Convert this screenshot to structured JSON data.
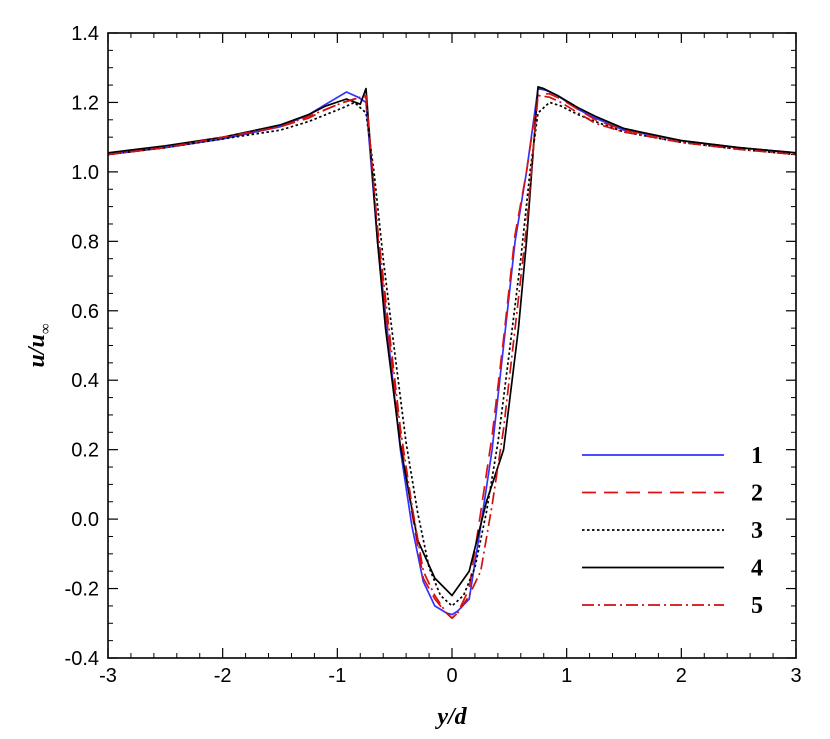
{
  "chart_data": {
    "type": "line",
    "xlabel": "y/d",
    "ylabel_main": "u/u",
    "ylabel_sub": "∞",
    "xlim": [
      -3,
      3
    ],
    "ylim": [
      -0.4,
      1.4
    ],
    "xticks": [
      "-3",
      "-2",
      "-1",
      "0",
      "1",
      "2",
      "3"
    ],
    "yticks": [
      "-0.4",
      "-0.2",
      "0.0",
      "0.2",
      "0.4",
      "0.6",
      "0.8",
      "1.0",
      "1.2",
      "1.4"
    ],
    "grid": false,
    "legend_position": "lower-right",
    "series": [
      {
        "name": "1",
        "color": "#3333ff",
        "dash": "solid",
        "x": [
          -3,
          -2.5,
          -2,
          -1.5,
          -1.25,
          -1.1,
          -0.92,
          -0.82,
          -0.75,
          -0.65,
          -0.55,
          -0.45,
          -0.35,
          -0.25,
          -0.15,
          -0.05,
          0,
          0.05,
          0.15,
          0.25,
          0.35,
          0.45,
          0.55,
          0.65,
          0.75,
          0.82,
          0.92,
          1.1,
          1.25,
          1.5,
          2,
          2.5,
          3
        ],
        "y": [
          1.05,
          1.07,
          1.095,
          1.13,
          1.165,
          1.195,
          1.23,
          1.215,
          1.2,
          0.8,
          0.5,
          0.2,
          -0.02,
          -0.18,
          -0.25,
          -0.27,
          -0.275,
          -0.265,
          -0.23,
          -0.02,
          0.2,
          0.5,
          0.8,
          1.0,
          1.24,
          1.235,
          1.22,
          1.18,
          1.155,
          1.12,
          1.09,
          1.07,
          1.055
        ]
      },
      {
        "name": "2",
        "color": "#dd1111",
        "dash": "dashed",
        "x": [
          -3,
          -2.5,
          -2,
          -1.5,
          -1.25,
          -1.1,
          -0.95,
          -0.85,
          -0.75,
          -0.65,
          -0.55,
          -0.45,
          -0.35,
          -0.25,
          -0.15,
          -0.05,
          0,
          0.05,
          0.15,
          0.25,
          0.35,
          0.45,
          0.55,
          0.65,
          0.75,
          0.85,
          0.95,
          1.1,
          1.25,
          1.5,
          2,
          2.5,
          3
        ],
        "y": [
          1.05,
          1.07,
          1.1,
          1.13,
          1.155,
          1.18,
          1.2,
          1.21,
          1.215,
          0.82,
          0.52,
          0.24,
          0.02,
          -0.17,
          -0.23,
          -0.27,
          -0.285,
          -0.27,
          -0.2,
          0.02,
          0.24,
          0.52,
          0.82,
          1.0,
          1.225,
          1.225,
          1.21,
          1.18,
          1.15,
          1.12,
          1.09,
          1.07,
          1.055
        ]
      },
      {
        "name": "3",
        "color": "#000000",
        "dash": "dotted",
        "x": [
          -3,
          -2.5,
          -2,
          -1.5,
          -1.25,
          -1.1,
          -0.95,
          -0.85,
          -0.75,
          -0.68,
          -0.6,
          -0.5,
          -0.4,
          -0.3,
          -0.2,
          -0.1,
          0,
          0.1,
          0.2,
          0.3,
          0.4,
          0.5,
          0.6,
          0.68,
          0.75,
          0.85,
          0.95,
          1.1,
          1.25,
          1.5,
          2,
          2.5,
          3
        ],
        "y": [
          1.05,
          1.07,
          1.095,
          1.12,
          1.145,
          1.165,
          1.185,
          1.2,
          1.17,
          1.0,
          0.75,
          0.48,
          0.22,
          0.02,
          -0.14,
          -0.22,
          -0.25,
          -0.22,
          -0.14,
          0.02,
          0.22,
          0.48,
          0.75,
          1.0,
          1.17,
          1.2,
          1.19,
          1.165,
          1.145,
          1.115,
          1.085,
          1.065,
          1.05
        ]
      },
      {
        "name": "4",
        "color": "#000000",
        "dash": "solid",
        "x": [
          -3,
          -2.5,
          -2,
          -1.5,
          -1.25,
          -1.1,
          -0.92,
          -0.8,
          -0.75,
          -0.65,
          -0.58,
          -0.45,
          -0.3,
          -0.15,
          0,
          0.15,
          0.3,
          0.45,
          0.58,
          0.65,
          0.75,
          0.8,
          0.92,
          1.1,
          1.25,
          1.5,
          2,
          2.5,
          3
        ],
        "y": [
          1.055,
          1.075,
          1.1,
          1.135,
          1.165,
          1.19,
          1.21,
          1.195,
          1.24,
          0.8,
          0.55,
          0.21,
          -0.06,
          -0.17,
          -0.22,
          -0.15,
          0.05,
          0.2,
          0.55,
          0.8,
          1.245,
          1.24,
          1.22,
          1.185,
          1.16,
          1.125,
          1.09,
          1.07,
          1.055
        ]
      },
      {
        "name": "5",
        "color": "#cc1111",
        "dash": "dashdot",
        "x": [
          -3,
          -2.5,
          -2,
          -1.5,
          -1.25,
          -1.1,
          -0.95,
          -0.85,
          -0.75,
          -0.65,
          -0.55,
          -0.45,
          -0.35,
          -0.25,
          -0.15,
          -0.05,
          0,
          0.05,
          0.15,
          0.25,
          0.35,
          0.45,
          0.55,
          0.65,
          0.75,
          0.85,
          0.95,
          1.1,
          1.25,
          1.5,
          2,
          2.5,
          3
        ],
        "y": [
          1.05,
          1.07,
          1.1,
          1.13,
          1.16,
          1.18,
          1.2,
          1.21,
          1.22,
          0.84,
          0.55,
          0.26,
          0.04,
          -0.15,
          -0.22,
          -0.27,
          -0.285,
          -0.27,
          -0.22,
          -0.15,
          0.04,
          0.26,
          0.55,
          0.84,
          1.22,
          1.215,
          1.2,
          1.17,
          1.14,
          1.115,
          1.085,
          1.065,
          1.05
        ]
      }
    ]
  }
}
